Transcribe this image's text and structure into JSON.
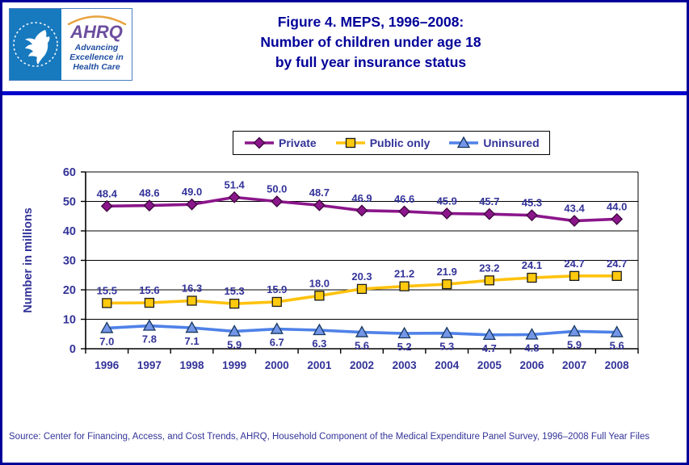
{
  "header": {
    "logo": {
      "hhs_emblem": "hhs-eagle",
      "ahrq": "AHRQ",
      "tagline_lines": [
        "Advancing",
        "Excellence in",
        "Health Care"
      ]
    },
    "title_lines": [
      "Figure 4. MEPS, 1996–2008:",
      "Number of children under age 18",
      "by full year insurance status"
    ]
  },
  "chart_data": {
    "type": "line",
    "title": "Figure 4. MEPS, 1996–2008: Number of children under age 18 by full year insurance status",
    "ylabel": "Number in millions",
    "xlabel": "",
    "categories": [
      "1996",
      "1997",
      "1998",
      "1999",
      "2000",
      "2001",
      "2002",
      "2003",
      "2004",
      "2005",
      "2006",
      "2007",
      "2008"
    ],
    "ylim": [
      0,
      60
    ],
    "yticks": [
      0,
      10,
      20,
      30,
      40,
      50,
      60
    ],
    "grid": true,
    "legend_position": "top",
    "data_label_color": "#333399",
    "axis_text_color": "#333399",
    "series": [
      {
        "name": "Private",
        "marker": "diamond",
        "line_color": "#8B168B",
        "marker_fill": "#8B168B",
        "marker_stroke": "#3D063D",
        "label_position": "above",
        "values": [
          48.4,
          48.6,
          49.0,
          51.4,
          50.0,
          48.7,
          46.9,
          46.6,
          45.9,
          45.7,
          45.3,
          43.4,
          44.0
        ]
      },
      {
        "name": "Public only",
        "marker": "square",
        "line_color": "#FFC20E",
        "marker_fill": "#FFC90E",
        "marker_stroke": "#1A1A1A",
        "label_position": "above",
        "values": [
          15.5,
          15.6,
          16.3,
          15.3,
          15.9,
          18.0,
          20.3,
          21.2,
          21.9,
          23.2,
          24.1,
          24.7,
          24.7
        ]
      },
      {
        "name": "Uninsured",
        "marker": "triangle",
        "line_color": "#4F81E8",
        "marker_fill": "#7396E8",
        "marker_stroke": "#17375E",
        "label_position": "below",
        "values": [
          7.0,
          7.8,
          7.1,
          5.9,
          6.7,
          6.3,
          5.6,
          5.2,
          5.3,
          4.7,
          4.8,
          5.9,
          5.6
        ]
      }
    ]
  },
  "source_text": "Source: Center for Financing, Access, and Cost Trends, AHRQ, Household Component of the Medical Expenditure Panel Survey, 1996–2008 Full Year Files",
  "colors": {
    "title": "#000099",
    "border": "#000099",
    "divider": "#0000CC",
    "hhs_blue": "#1779BE",
    "ahrq_purple": "#6B4E9E",
    "tagline_blue": "#1F4EA1",
    "swoosh_orange": "#E8A33D"
  }
}
